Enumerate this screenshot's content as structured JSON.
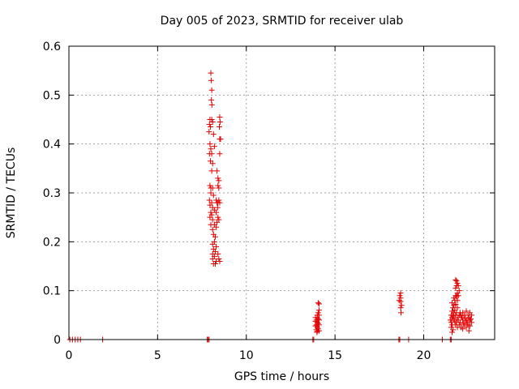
{
  "chart_data": {
    "type": "scatter",
    "title": "Day 005 of 2023, SRMTID for receiver ulab",
    "xlabel": "GPS time / hours",
    "ylabel": "SRMTID / TECUs",
    "xlim": [
      0,
      24
    ],
    "ylim": [
      0,
      0.6
    ],
    "xticks": [
      0,
      5,
      10,
      15,
      20
    ],
    "yticks": [
      0,
      0.1,
      0.2,
      0.3,
      0.4,
      0.5,
      0.6
    ],
    "xtick_labels": [
      "0",
      "5",
      "10",
      "15",
      "20"
    ],
    "ytick_labels": [
      "0",
      "0.1",
      "0.2",
      "0.3",
      "0.4",
      "0.5",
      "0.6"
    ],
    "grid": true,
    "marker": "+",
    "color": "#e00000",
    "series": [
      {
        "points": [
          [
            0.05,
            0
          ],
          [
            0.2,
            0
          ],
          [
            0.35,
            0
          ],
          [
            0.5,
            0
          ],
          [
            0.65,
            0
          ],
          [
            1.9,
            0
          ],
          [
            7.8,
            0
          ],
          [
            7.85,
            0
          ],
          [
            7.9,
            0
          ],
          [
            13.75,
            0
          ],
          [
            13.8,
            0
          ],
          [
            18.6,
            0
          ],
          [
            18.65,
            0
          ],
          [
            19.15,
            0
          ],
          [
            21.05,
            0
          ],
          [
            21.5,
            0
          ],
          [
            21.55,
            0
          ],
          [
            8.0,
            0.545
          ],
          [
            8.02,
            0.53
          ],
          [
            8.05,
            0.51
          ],
          [
            8.03,
            0.49
          ],
          [
            8.06,
            0.48
          ],
          [
            7.95,
            0.45
          ],
          [
            8.05,
            0.45
          ],
          [
            7.92,
            0.44
          ],
          [
            7.98,
            0.435
          ],
          [
            8.1,
            0.445
          ],
          [
            7.9,
            0.425
          ],
          [
            8.15,
            0.42
          ],
          [
            8.5,
            0.455
          ],
          [
            8.52,
            0.445
          ],
          [
            8.48,
            0.435
          ],
          [
            8.55,
            0.41
          ],
          [
            8.5,
            0.41
          ],
          [
            7.95,
            0.4
          ],
          [
            8.0,
            0.39
          ],
          [
            8.2,
            0.395
          ],
          [
            7.92,
            0.38
          ],
          [
            8.05,
            0.38
          ],
          [
            8.5,
            0.38
          ],
          [
            7.98,
            0.365
          ],
          [
            8.1,
            0.36
          ],
          [
            8.05,
            0.345
          ],
          [
            8.35,
            0.345
          ],
          [
            8.4,
            0.33
          ],
          [
            8.45,
            0.325
          ],
          [
            8.4,
            0.315
          ],
          [
            8.45,
            0.31
          ],
          [
            7.95,
            0.315
          ],
          [
            8.0,
            0.31
          ],
          [
            8.1,
            0.31
          ],
          [
            8.0,
            0.3
          ],
          [
            8.15,
            0.295
          ],
          [
            7.92,
            0.285
          ],
          [
            8.05,
            0.28
          ],
          [
            8.3,
            0.285
          ],
          [
            8.35,
            0.28
          ],
          [
            8.4,
            0.28
          ],
          [
            8.45,
            0.285
          ],
          [
            8.5,
            0.28
          ],
          [
            7.95,
            0.275
          ],
          [
            8.1,
            0.27
          ],
          [
            8.2,
            0.265
          ],
          [
            8.38,
            0.27
          ],
          [
            8.0,
            0.26
          ],
          [
            8.05,
            0.255
          ],
          [
            8.3,
            0.26
          ],
          [
            7.95,
            0.25
          ],
          [
            8.1,
            0.245
          ],
          [
            8.4,
            0.25
          ],
          [
            8.35,
            0.24
          ],
          [
            8.45,
            0.245
          ],
          [
            8.0,
            0.235
          ],
          [
            8.2,
            0.235
          ],
          [
            8.1,
            0.225
          ],
          [
            8.3,
            0.23
          ],
          [
            8.15,
            0.215
          ],
          [
            8.25,
            0.21
          ],
          [
            8.2,
            0.2
          ],
          [
            8.1,
            0.195
          ],
          [
            8.3,
            0.19
          ],
          [
            8.15,
            0.185
          ],
          [
            8.25,
            0.18
          ],
          [
            8.1,
            0.175
          ],
          [
            8.4,
            0.175
          ],
          [
            8.2,
            0.17
          ],
          [
            8.45,
            0.165
          ],
          [
            8.1,
            0.165
          ],
          [
            8.3,
            0.16
          ],
          [
            8.5,
            0.16
          ],
          [
            8.15,
            0.155
          ],
          [
            8.25,
            0.155
          ],
          [
            14.05,
            0.075
          ],
          [
            14.1,
            0.073
          ],
          [
            14.1,
            0.06
          ],
          [
            14.05,
            0.055
          ],
          [
            14.0,
            0.05
          ],
          [
            14.1,
            0.05
          ],
          [
            13.9,
            0.045
          ],
          [
            14.0,
            0.045
          ],
          [
            14.05,
            0.042
          ],
          [
            13.95,
            0.04
          ],
          [
            14.1,
            0.04
          ],
          [
            13.9,
            0.037
          ],
          [
            14.0,
            0.035
          ],
          [
            14.05,
            0.033
          ],
          [
            13.95,
            0.03
          ],
          [
            14.1,
            0.03
          ],
          [
            13.9,
            0.028
          ],
          [
            14.0,
            0.025
          ],
          [
            14.05,
            0.022
          ],
          [
            13.95,
            0.02
          ],
          [
            14.0,
            0.017
          ],
          [
            14.1,
            0.018
          ],
          [
            13.98,
            0.015
          ],
          [
            18.7,
            0.095
          ],
          [
            18.65,
            0.09
          ],
          [
            18.7,
            0.085
          ],
          [
            18.62,
            0.08
          ],
          [
            18.7,
            0.078
          ],
          [
            18.75,
            0.07
          ],
          [
            18.7,
            0.065
          ],
          [
            18.72,
            0.055
          ],
          [
            21.8,
            0.122
          ],
          [
            21.85,
            0.12
          ],
          [
            21.9,
            0.115
          ],
          [
            21.85,
            0.11
          ],
          [
            21.95,
            0.11
          ],
          [
            21.8,
            0.105
          ],
          [
            22.0,
            0.1
          ],
          [
            21.9,
            0.095
          ],
          [
            21.95,
            0.09
          ],
          [
            21.8,
            0.09
          ],
          [
            21.85,
            0.088
          ],
          [
            21.7,
            0.085
          ],
          [
            21.75,
            0.08
          ],
          [
            21.9,
            0.08
          ],
          [
            21.6,
            0.075
          ],
          [
            21.8,
            0.072
          ],
          [
            21.7,
            0.07
          ],
          [
            21.65,
            0.065
          ],
          [
            21.9,
            0.065
          ],
          [
            21.75,
            0.06
          ],
          [
            21.6,
            0.058
          ],
          [
            21.7,
            0.055
          ],
          [
            21.85,
            0.055
          ],
          [
            22.05,
            0.055
          ],
          [
            22.2,
            0.055
          ],
          [
            22.4,
            0.058
          ],
          [
            22.6,
            0.055
          ],
          [
            22.7,
            0.05
          ],
          [
            21.55,
            0.05
          ],
          [
            21.65,
            0.048
          ],
          [
            21.8,
            0.05
          ],
          [
            22.0,
            0.05
          ],
          [
            22.1,
            0.048
          ],
          [
            22.3,
            0.05
          ],
          [
            22.5,
            0.05
          ],
          [
            21.6,
            0.045
          ],
          [
            21.7,
            0.042
          ],
          [
            21.9,
            0.045
          ],
          [
            22.15,
            0.045
          ],
          [
            22.35,
            0.043
          ],
          [
            22.55,
            0.045
          ],
          [
            22.65,
            0.042
          ],
          [
            21.5,
            0.04
          ],
          [
            21.75,
            0.038
          ],
          [
            21.95,
            0.04
          ],
          [
            22.2,
            0.04
          ],
          [
            22.4,
            0.038
          ],
          [
            22.6,
            0.04
          ],
          [
            21.55,
            0.035
          ],
          [
            21.85,
            0.035
          ],
          [
            22.05,
            0.035
          ],
          [
            22.25,
            0.033
          ],
          [
            22.45,
            0.035
          ],
          [
            22.7,
            0.035
          ],
          [
            21.6,
            0.03
          ],
          [
            21.8,
            0.03
          ],
          [
            22.0,
            0.03
          ],
          [
            22.3,
            0.03
          ],
          [
            22.5,
            0.03
          ],
          [
            22.6,
            0.028
          ],
          [
            21.55,
            0.025
          ],
          [
            21.9,
            0.025
          ],
          [
            22.1,
            0.025
          ],
          [
            22.4,
            0.025
          ],
          [
            21.65,
            0.02
          ],
          [
            22.2,
            0.022
          ],
          [
            21.6,
            0.015
          ],
          [
            22.55,
            0.018
          ]
        ]
      }
    ]
  }
}
